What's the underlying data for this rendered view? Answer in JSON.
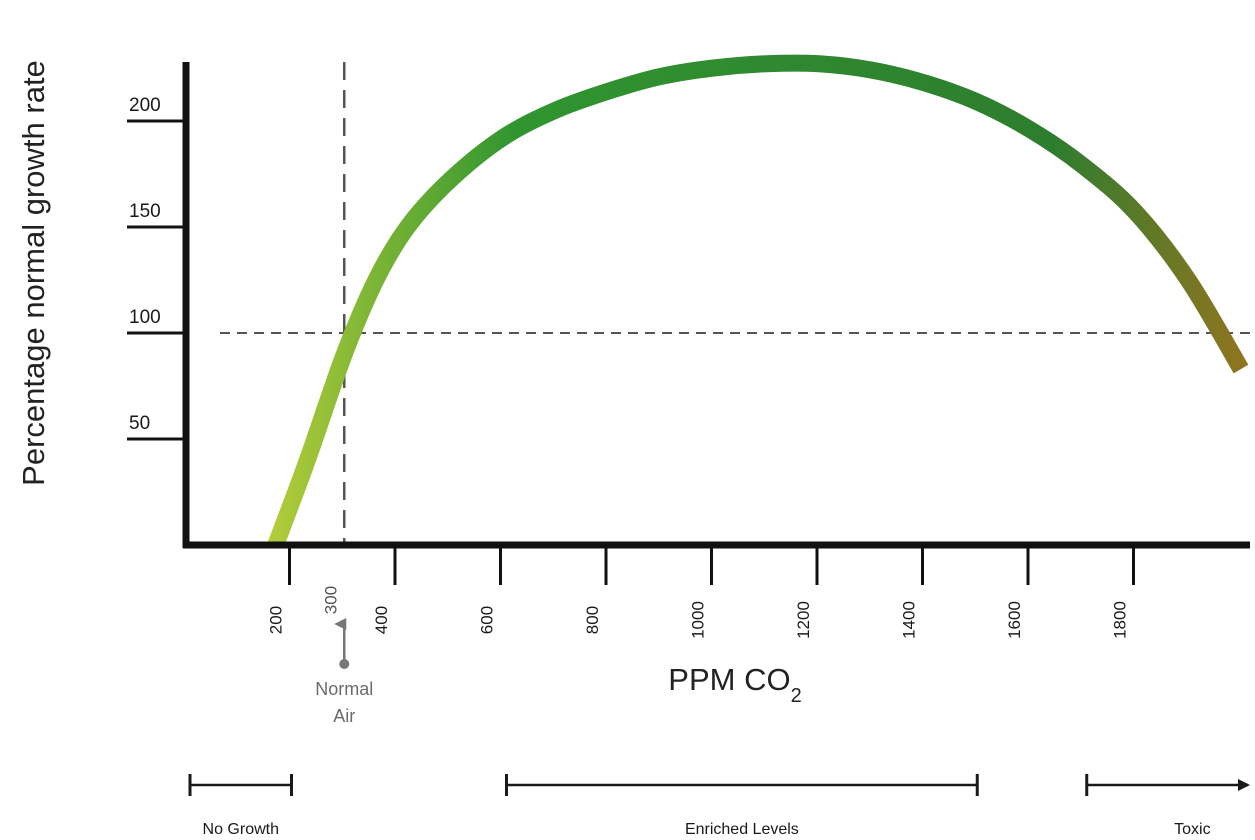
{
  "chart_data": {
    "type": "line",
    "title": "",
    "xlabel": "PPM CO",
    "xlabel_subscript": "2",
    "ylabel": "Percentage normal growth rate",
    "xlim": [
      0,
      2100
    ],
    "ylim": [
      0,
      230
    ],
    "x_ticks": [
      200,
      400,
      600,
      800,
      1000,
      1200,
      1400,
      1600,
      1800
    ],
    "y_ticks": [
      50,
      100,
      150,
      200
    ],
    "grid": false,
    "series": [
      {
        "x": [
          170,
          230,
          300,
          360,
          420,
          500,
          600,
          700,
          800,
          900,
          1000,
          1100,
          1200,
          1300,
          1400,
          1500,
          1600,
          1700,
          1800,
          1900,
          2000
        ],
        "y": [
          0,
          40,
          90,
          125,
          150,
          172,
          192,
          205,
          214,
          221,
          225,
          227,
          227,
          224,
          218,
          209,
          196,
          179,
          157,
          125,
          83
        ],
        "colors": [
          "#b4cc3a",
          "#30952f",
          "#2e7d2f",
          "#94741f"
        ]
      }
    ],
    "reference_lines": [
      {
        "axis": "x",
        "value": 300,
        "label": "300",
        "color": "#555555"
      },
      {
        "axis": "y",
        "value": 100,
        "color": "#555555"
      }
    ],
    "annotations": [
      {
        "text_lines": [
          "Normal",
          "Air"
        ],
        "x": 300,
        "color": "#6b6b6b"
      }
    ],
    "ranges": [
      {
        "label": "No Growth",
        "from": 0,
        "to": 200,
        "arrow": false
      },
      {
        "label": "Enriched Levels",
        "from": 600,
        "to": 1500,
        "arrow": false
      },
      {
        "label": "Toxic",
        "from": 1700,
        "to": 2100,
        "arrow": true
      }
    ]
  }
}
